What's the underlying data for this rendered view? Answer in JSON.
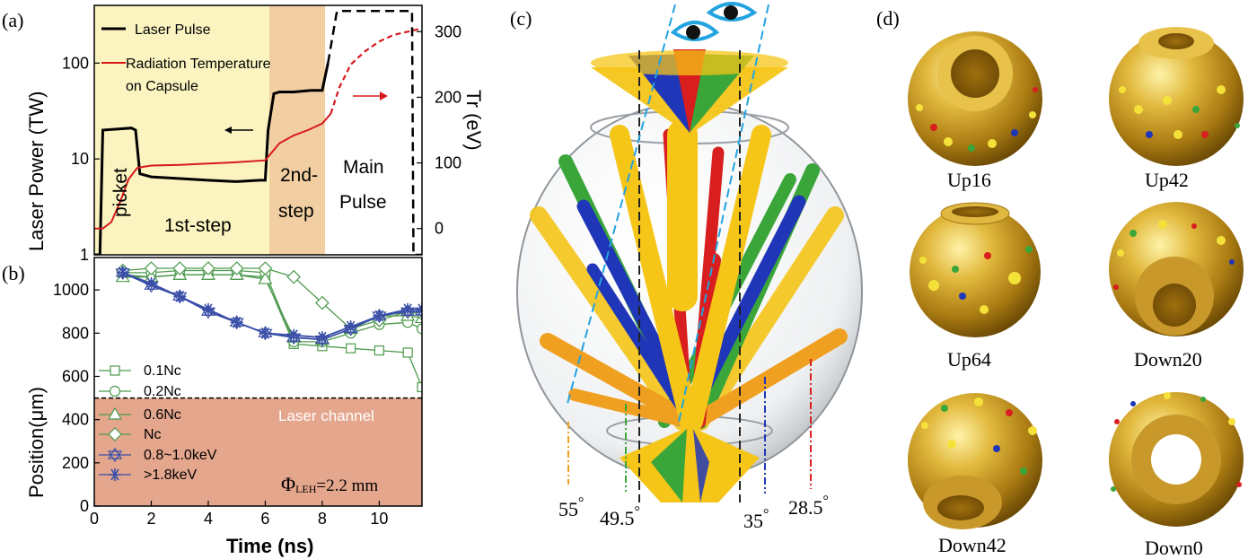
{
  "panels": {
    "a": {
      "label": "(a)",
      "ylabel": "Laser Power (TW)",
      "y2label": "Tr (eV)",
      "yticks": [
        "1",
        "10",
        "100"
      ],
      "y2ticks": [
        "0",
        "100",
        "200",
        "300"
      ],
      "legend": {
        "laser": "Laser Pulse",
        "temp_line1": "Radiation Temperature",
        "temp_line2": "on Capsule"
      },
      "phases": {
        "picket": "picket",
        "first_step": "1st-step",
        "second_step_1": "2nd-",
        "second_step_2": "step",
        "main_1": "Main",
        "main_2": "Pulse"
      },
      "colors": {
        "phase1": "#fbf4c0",
        "phase2": "#f2cfa2",
        "laser": "#000000",
        "temp": "#d7191c"
      }
    },
    "b": {
      "label": "(b)",
      "xlabel": "Time (ns)",
      "ylabel": "Position(μm)",
      "xticks": [
        "0",
        "2",
        "4",
        "6",
        "8",
        "10"
      ],
      "yticks": [
        "0",
        "200",
        "400",
        "600",
        "800",
        "1000"
      ],
      "channel_label": "Laser channel",
      "phi_symbol": "Φ",
      "phi_sub": "LEH",
      "phi_value": "=2.2 mm",
      "legend": [
        "0.1Nc",
        "0.2Nc",
        "0.6Nc",
        "Nc",
        "0.8~1.0keV",
        ">1.8keV"
      ],
      "colors": {
        "channel": "#e4a68d",
        "green": "#4e9a4e",
        "blue": "#3a4fa8"
      }
    },
    "c": {
      "label": "(c)",
      "angles": [
        "55",
        "49.5",
        "35",
        "28.5"
      ],
      "degree": "°",
      "colors": {
        "yellow": "#f5c518",
        "red": "#d81e1e",
        "blue": "#2036b8",
        "green": "#3aa63a",
        "orange": "#f0a020"
      }
    },
    "d": {
      "label": "(d)",
      "captions": [
        "Up16",
        "Up42",
        "Up64",
        "Down20",
        "Down42",
        "Down0"
      ]
    }
  },
  "chart_data": [
    {
      "type": "line",
      "title": "",
      "xlabel": "",
      "ylabel": "Laser Power (TW)",
      "y2label": "Tr (eV)",
      "yscale": "log",
      "ylim": [
        1,
        400
      ],
      "y2lim": [
        -40,
        340
      ],
      "xlim": [
        0,
        11.5
      ],
      "series": [
        {
          "name": "Laser Pulse",
          "x": [
            0,
            0.2,
            0.3,
            1.3,
            1.45,
            1.6,
            2,
            4,
            5,
            5.8,
            6,
            6.1,
            6.3,
            6.5,
            7,
            7.6,
            8.0,
            8.2,
            8.5,
            8.55,
            10.5,
            11.0,
            11.15,
            11.2,
            11.5
          ],
          "y": [
            1,
            1,
            20,
            21,
            20,
            7,
            6.5,
            6,
            5.8,
            6,
            6,
            20,
            48,
            50,
            50,
            52,
            52,
            100,
            330,
            350,
            350,
            350,
            350,
            1,
            1
          ]
        },
        {
          "name": "Radiation Temperature on Capsule",
          "x": [
            0,
            0.3,
            0.6,
            0.9,
            1.2,
            1.5,
            1.7,
            2,
            3,
            4,
            5,
            6,
            6.5,
            7,
            7.5,
            8,
            8.3,
            8.6,
            9,
            9.5,
            10,
            10.5,
            11,
            11.5
          ],
          "y": [
            0,
            0,
            10,
            40,
            75,
            92,
            94,
            96,
            97,
            99,
            101,
            104,
            130,
            142,
            150,
            160,
            175,
            215,
            250,
            270,
            285,
            295,
            300,
            305
          ]
        }
      ]
    },
    {
      "type": "line",
      "title": "",
      "xlabel": "Time (ns)",
      "ylabel": "Position(μm)",
      "xlim": [
        0,
        11.5
      ],
      "ylim": [
        0,
        1150
      ],
      "threshold": 500,
      "series": [
        {
          "name": "0.1Nc",
          "x": [
            1,
            2,
            3,
            4,
            5,
            6,
            7,
            8,
            9,
            10,
            11,
            11.5
          ],
          "y": [
            1070,
            1060,
            1070,
            1070,
            1070,
            1060,
            750,
            740,
            730,
            720,
            710,
            550
          ]
        },
        {
          "name": "0.2Nc",
          "x": [
            1,
            2,
            3,
            4,
            5,
            6,
            7,
            8,
            9,
            10,
            11,
            11.5
          ],
          "y": [
            1080,
            1080,
            1090,
            1090,
            1090,
            1080,
            760,
            760,
            800,
            840,
            850,
            820
          ]
        },
        {
          "name": "0.6Nc",
          "x": [
            1,
            2,
            3,
            4,
            5,
            6,
            7,
            8,
            9,
            10,
            11,
            11.5
          ],
          "y": [
            1060,
            1060,
            1070,
            1070,
            1070,
            1050,
            780,
            770,
            820,
            880,
            880,
            870
          ]
        },
        {
          "name": "Nc",
          "x": [
            1,
            2,
            3,
            4,
            5,
            6,
            7,
            8,
            9,
            10,
            11,
            11.5
          ],
          "y": [
            1090,
            1100,
            1100,
            1100,
            1100,
            1100,
            1060,
            940,
            820,
            860,
            900,
            890
          ]
        },
        {
          "name": "0.8~1.0keV",
          "x": [
            1,
            2,
            3,
            4,
            5,
            6,
            7,
            8,
            9,
            10,
            11,
            11.5
          ],
          "y": [
            1080,
            1020,
            970,
            900,
            850,
            800,
            780,
            770,
            820,
            880,
            900,
            900
          ]
        },
        {
          "name": ">1.8keV",
          "x": [
            1,
            2,
            3,
            4,
            5,
            6,
            7,
            8,
            9,
            10,
            11,
            11.5
          ],
          "y": [
            1080,
            1030,
            970,
            910,
            850,
            800,
            790,
            780,
            830,
            880,
            910,
            910
          ]
        }
      ]
    }
  ]
}
